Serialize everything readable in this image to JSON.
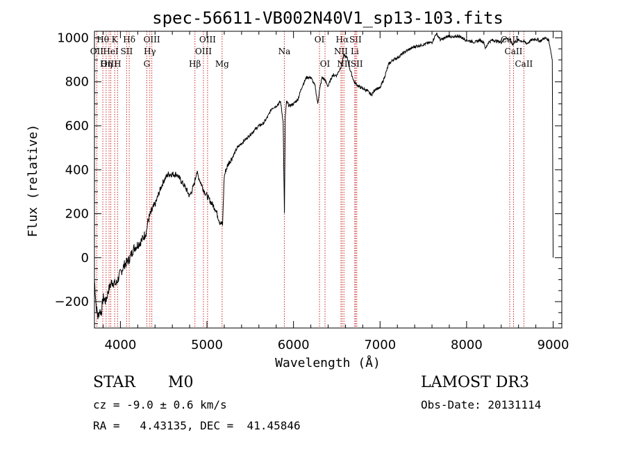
{
  "chart_data": {
    "type": "line",
    "title": "spec-56611-VB002N40V1_sp13-103.fits",
    "xlabel": "Wavelength (Å)",
    "ylabel": "Flux (relative)",
    "xlim": [
      3700,
      9100
    ],
    "ylim": [
      -320,
      1030
    ],
    "xticks": [
      4000,
      5000,
      6000,
      7000,
      8000,
      9000
    ],
    "yticks": [
      -200,
      0,
      200,
      400,
      600,
      800,
      1000
    ],
    "series": [
      {
        "name": "flux",
        "x": [
          3700,
          3720,
          3740,
          3760,
          3780,
          3800,
          3830,
          3860,
          3900,
          3950,
          4000,
          4050,
          4100,
          4150,
          4200,
          4250,
          4300,
          4320,
          4340,
          4360,
          4400,
          4450,
          4500,
          4550,
          4600,
          4650,
          4700,
          4750,
          4800,
          4850,
          4880,
          4920,
          4960,
          5000,
          5050,
          5100,
          5150,
          5180,
          5200,
          5220,
          5250,
          5300,
          5350,
          5400,
          5450,
          5500,
          5550,
          5600,
          5650,
          5700,
          5750,
          5800,
          5850,
          5880,
          5895,
          5905,
          5920,
          5950,
          6000,
          6050,
          6100,
          6150,
          6200,
          6250,
          6280,
          6300,
          6330,
          6360,
          6400,
          6450,
          6500,
          6550,
          6580,
          6620,
          6650,
          6700,
          6750,
          6800,
          6850,
          6900,
          6950,
          7000,
          7050,
          7100,
          7150,
          7200,
          7300,
          7400,
          7500,
          7600,
          7650,
          7700,
          7750,
          7800,
          7850,
          7900,
          7950,
          8000,
          8050,
          8100,
          8150,
          8200,
          8220,
          8250,
          8300,
          8350,
          8400,
          8450,
          8500,
          8530,
          8550,
          8600,
          8650,
          8700,
          8750,
          8800,
          8850,
          8900,
          8950,
          8990,
          9000
        ],
        "y": [
          -100,
          -220,
          -270,
          -240,
          -250,
          -180,
          -200,
          -150,
          -110,
          -120,
          -70,
          -30,
          -10,
          40,
          60,
          80,
          120,
          170,
          190,
          210,
          240,
          300,
          350,
          380,
          380,
          380,
          350,
          320,
          280,
          330,
          390,
          350,
          310,
          280,
          250,
          220,
          160,
          150,
          370,
          400,
          430,
          460,
          500,
          520,
          540,
          560,
          580,
          600,
          610,
          640,
          680,
          690,
          710,
          620,
          200,
          640,
          710,
          690,
          700,
          720,
          780,
          820,
          820,
          780,
          700,
          760,
          820,
          810,
          780,
          830,
          830,
          870,
          920,
          910,
          860,
          800,
          780,
          770,
          760,
          740,
          770,
          770,
          820,
          880,
          900,
          910,
          940,
          960,
          970,
          980,
          1020,
          990,
          1000,
          1010,
          1000,
          1010,
          1000,
          990,
          985,
          980,
          990,
          980,
          950,
          980,
          990,
          985,
          980,
          1000,
          990,
          970,
          980,
          990,
          985,
          975,
          990,
          995,
          985,
          1000,
          990,
          900,
          0
        ]
      }
    ],
    "line_markers": [
      {
        "label": "Hθ",
        "x": 3797,
        "row": 1
      },
      {
        "label": "OII",
        "x": 3727,
        "row": 2
      },
      {
        "label": "OIII",
        "x": 3869,
        "row": 3
      },
      {
        "label": "K",
        "x": 3934,
        "row": 1
      },
      {
        "label": "HeI",
        "x": 3889,
        "row": 2
      },
      {
        "label": "Hη",
        "x": 3835,
        "row": 3
      },
      {
        "label": "Hδ",
        "x": 4102,
        "row": 1
      },
      {
        "label": "SII",
        "x": 4072,
        "row": 2
      },
      {
        "label": "H",
        "x": 3968,
        "row": 3
      },
      {
        "label": "OIII",
        "x": 4363,
        "row": 1
      },
      {
        "label": "Hγ",
        "x": 4340,
        "row": 2
      },
      {
        "label": "G",
        "x": 4305,
        "row": 3
      },
      {
        "label": "OIII",
        "x": 5007,
        "row": 1
      },
      {
        "label": "OIII",
        "x": 4959,
        "row": 2
      },
      {
        "label": "Hβ",
        "x": 4861,
        "row": 3
      },
      {
        "label": "Mg",
        "x": 5175,
        "row": 3
      },
      {
        "label": "Na",
        "x": 5894,
        "row": 2
      },
      {
        "label": "OI",
        "x": 6300,
        "row": 1
      },
      {
        "label": "OI",
        "x": 6364,
        "row": 3
      },
      {
        "label": "Hα",
        "x": 6563,
        "row": 1
      },
      {
        "label": "SII",
        "x": 6716,
        "row": 1
      },
      {
        "label": "NII",
        "x": 6548,
        "row": 2
      },
      {
        "label": "Li",
        "x": 6708,
        "row": 2
      },
      {
        "label": "NII",
        "x": 6583,
        "row": 3
      },
      {
        "label": "SII",
        "x": 6731,
        "row": 3
      },
      {
        "label": "CaII",
        "x": 8498,
        "row": 1
      },
      {
        "label": "CaII",
        "x": 8542,
        "row": 2
      },
      {
        "label": "CaII",
        "x": 8662,
        "row": 3
      }
    ]
  },
  "info": {
    "class": "STAR",
    "subclass": "M0",
    "survey": "LAMOST DR3",
    "cz": "cz = -9.0 ± 0.6 km/s",
    "obsdate": "Obs-Date: 20131114",
    "coords": "RA =   4.43135, DEC =  41.45846"
  },
  "colors": {
    "lines": "#cc2222",
    "spectrum": "#000000"
  }
}
